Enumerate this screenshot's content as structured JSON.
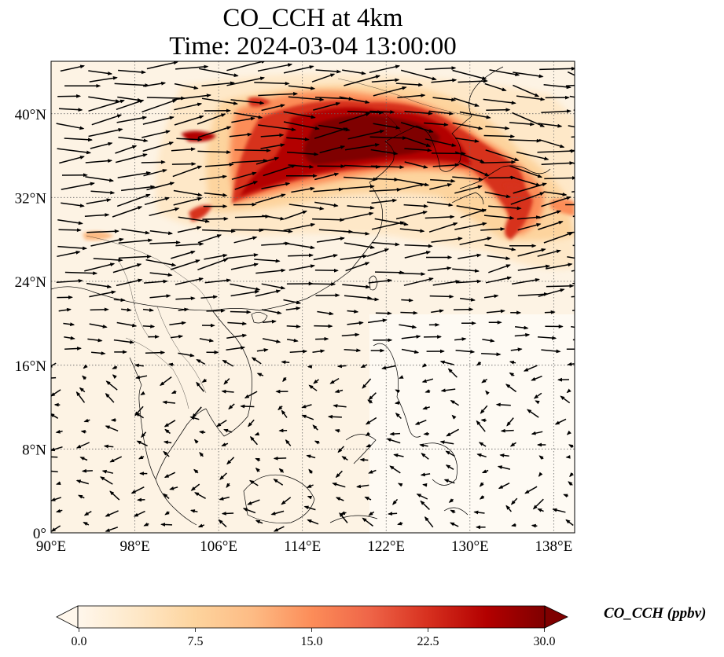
{
  "title": {
    "line1": "CO_CCH at 4km",
    "line2": "Time: 2024-03-04 13:00:00"
  },
  "map": {
    "lon_range": [
      90,
      140
    ],
    "lat_range": [
      0,
      45
    ],
    "lon_ticks": [
      90,
      98,
      106,
      114,
      122,
      130,
      138
    ],
    "lat_ticks": [
      0,
      8,
      16,
      24,
      32,
      40
    ],
    "lon_tick_labels": [
      "90°E",
      "98°E",
      "106°E",
      "114°E",
      "122°E",
      "130°E",
      "138°E"
    ],
    "lat_tick_labels": [
      "0°",
      "8°N",
      "16°N",
      "24°N",
      "32°N",
      "40°N"
    ],
    "gridlines": "dotted",
    "coastlines": true,
    "wind_vectors": true
  },
  "colorbar": {
    "label": "CO_CCH (ppbv)",
    "ticks": [
      0.0,
      7.5,
      15.0,
      22.5,
      30.0
    ],
    "tick_labels": [
      "0.0",
      "7.5",
      "15.0",
      "22.5",
      "30.0"
    ],
    "range": [
      0,
      30
    ],
    "extend": "both",
    "colormap": "OrRd",
    "colors": [
      "#fff7ec",
      "#fee8c8",
      "#fdd49e",
      "#fdbb84",
      "#fc8d59",
      "#ef6548",
      "#d7301f",
      "#b30000",
      "#7f0000"
    ]
  }
}
